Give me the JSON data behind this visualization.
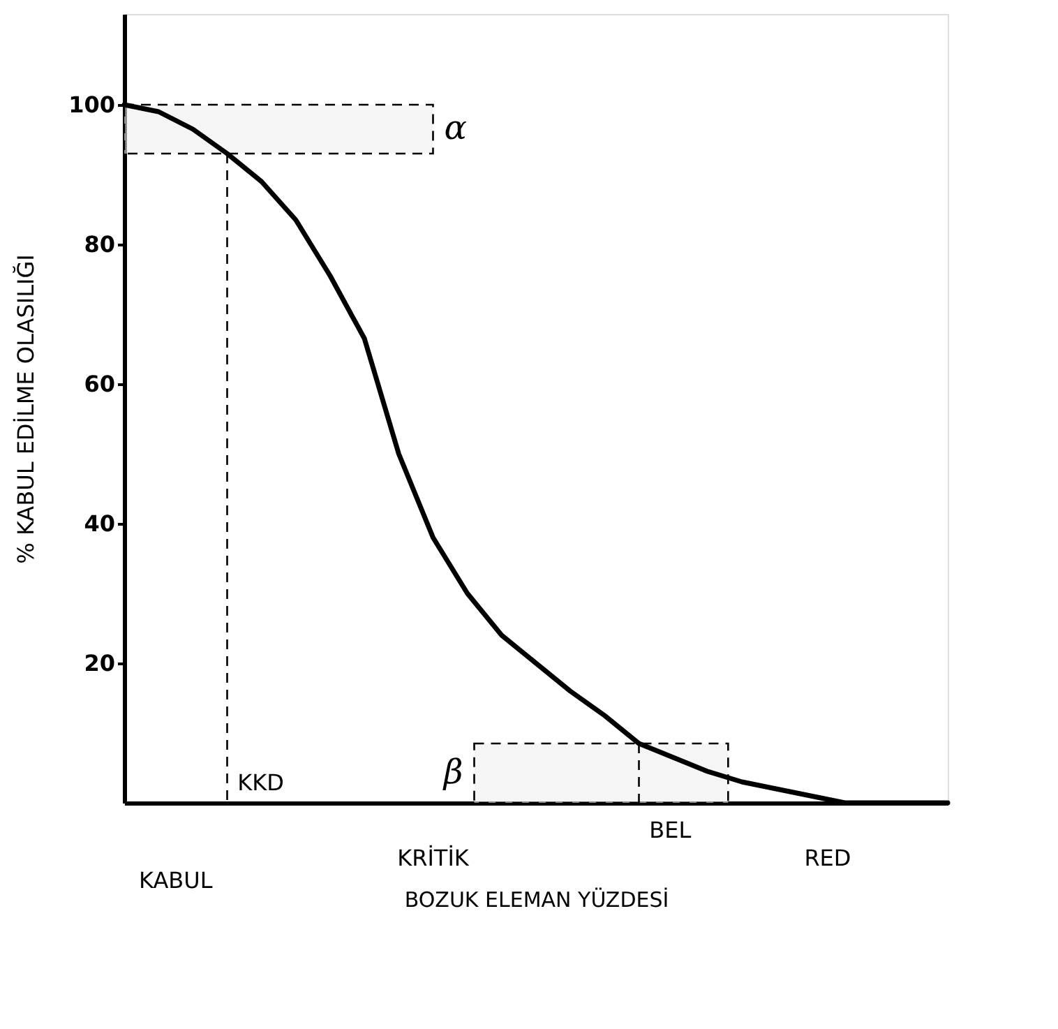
{
  "chart_data": {
    "type": "line",
    "xlabel": "BOZUK ELEMAN YÜZDESİ",
    "ylabel": "% KABUL EDİLME OLASILIĞI",
    "categories": [
      null,
      null,
      null,
      null,
      null,
      null,
      null,
      null,
      null,
      null,
      null,
      null,
      null,
      null,
      null,
      null,
      null,
      null,
      null,
      null,
      null,
      null,
      null,
      null,
      null
    ],
    "series": [
      {
        "color": "#000000",
        "values": [
          100,
          99,
          96.5,
          93,
          89,
          83.5,
          75.5,
          66.5,
          50,
          38,
          30,
          24,
          20,
          16,
          12.5,
          8.5,
          6.5,
          4.5,
          3,
          2,
          1,
          0,
          0,
          0,
          0
        ]
      }
    ],
    "ylim": [
      0,
      113
    ],
    "yticks": [
      20,
      40,
      60,
      80,
      100
    ],
    "tick_labels": "y",
    "grid": false,
    "marker": "none",
    "line_style": "solid",
    "bands": [
      {
        "axis": "y",
        "from": 93,
        "to": 100,
        "label": "α"
      },
      {
        "axis": "y",
        "from": 0,
        "to": 8.5,
        "label": "β"
      }
    ],
    "annotations": [
      "KKD",
      "BEL",
      "KABUL",
      "KRİTİK",
      "RED"
    ]
  }
}
